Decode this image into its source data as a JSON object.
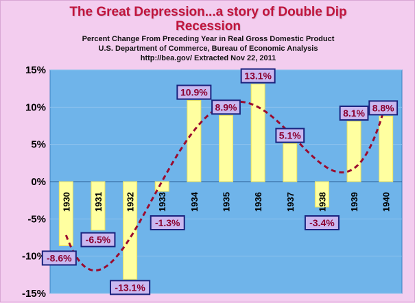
{
  "title": {
    "main_line1": "The Great Depression...a story of Double Dip",
    "main_line2": "Recession",
    "subtitle1": "Percent Change From Preceding Year in Real Gross Domestic Product",
    "subtitle2": "U.S. Department of Commerce, Bureau of Economic Analysis",
    "subtitle3": "http://bea.gov/  Extracted Nov 22, 2011"
  },
  "colors": {
    "background": "#f3cdef",
    "plot_area": "#6fb4ea",
    "bar_fill": "#ffffa0",
    "bar_stroke": "#e8e060",
    "label_box_fill": "#c9b8f0",
    "label_box_stroke": "#1a237e",
    "label_text": "#8b0030",
    "trend_line": "#9b0b2e"
  },
  "chart_data": {
    "type": "bar",
    "categories": [
      "1930",
      "1931",
      "1932",
      "1933",
      "1934",
      "1935",
      "1936",
      "1937",
      "1938",
      "1939",
      "1940"
    ],
    "values": [
      -8.6,
      -6.5,
      -13.1,
      -1.3,
      10.9,
      8.9,
      13.1,
      5.1,
      -3.4,
      8.1,
      8.8
    ],
    "data_labels": [
      "-8.6%",
      "-6.5%",
      "-13.1%",
      "-1.3%",
      "10.9%",
      "8.9%",
      "13.1%",
      "5.1%",
      "-3.4%",
      "8.1%",
      "8.8%"
    ],
    "ylim": [
      -15,
      15
    ],
    "y_ticks": [
      15,
      10,
      5,
      0,
      -5,
      -10,
      -15
    ],
    "y_tick_labels": [
      "15%",
      "10%",
      "5%",
      "0%",
      "-5%",
      "-10%",
      "-15%"
    ],
    "grid": true,
    "legend": "none",
    "trendline": "polynomial",
    "xlabel": "",
    "ylabel": ""
  }
}
